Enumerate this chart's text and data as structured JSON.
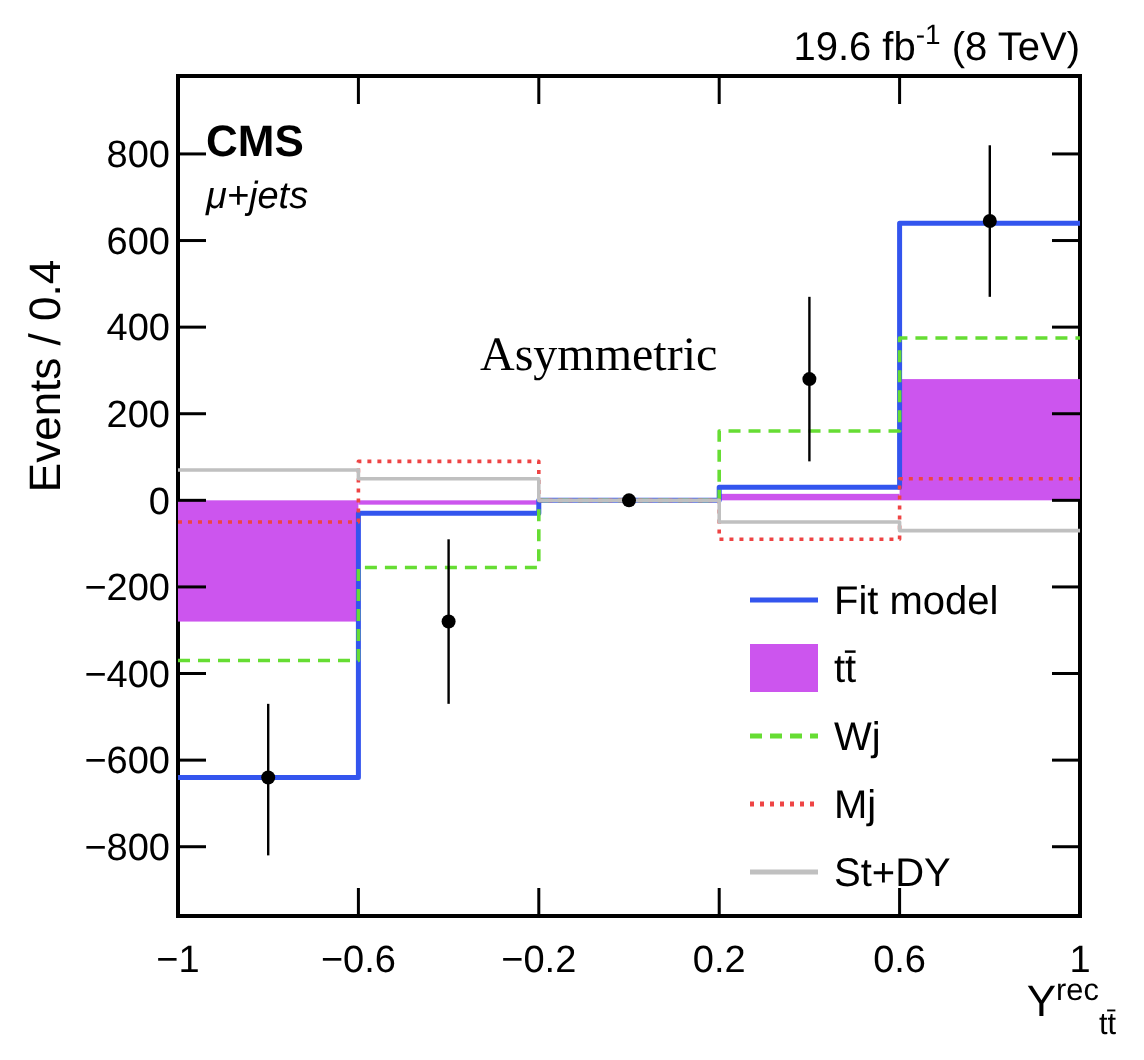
{
  "chart_data": {
    "type": "histogram",
    "ylabel": "Events / 0.4",
    "xlabel": "Υ$^{rec}$$_{tt̄}$",
    "annotations": [
      "19.6 fb$^{-1}$ (8 TeV)",
      "CMS",
      "μ+jets",
      "Asymmetric"
    ],
    "bins": [
      -1,
      -0.6,
      -0.2,
      0.2,
      0.6,
      1
    ],
    "xlim": [
      -1,
      1
    ],
    "xticks": [
      {
        "value": -1,
        "label": "−1"
      },
      {
        "value": -0.6,
        "label": "−0.6"
      },
      {
        "value": -0.2,
        "label": "−0.2"
      },
      0.2,
      0.6,
      1
    ],
    "ylim": [
      -960,
      980
    ],
    "yticks": [
      {
        "value": -800,
        "label": "−800"
      },
      {
        "value": -600,
        "label": "−600"
      },
      {
        "value": -400,
        "label": "−400"
      },
      {
        "value": -200,
        "label": "−200"
      },
      0,
      200,
      400,
      600,
      800
    ],
    "legend": "bottom right",
    "grid": false,
    "series": [
      {
        "type": "scatter",
        "color": "#000000",
        "marker": "circle",
        "x": [
          -0.8,
          -0.4,
          0,
          0.4,
          0.8
        ],
        "values": [
          -640,
          -280,
          0,
          280,
          645
        ],
        "errors": [
          [
            -820,
            -470
          ],
          [
            -470,
            -90
          ],
          null,
          [
            90,
            470
          ],
          [
            470,
            820
          ]
        ]
      },
      {
        "name": "Fit model",
        "type": "step",
        "color": "#3355ee",
        "line_style": "solid",
        "x": [
          -1,
          -0.6,
          -0.2,
          0.2,
          0.6,
          1
        ],
        "values": [
          -640,
          -30,
          0,
          30,
          640,
          640
        ]
      },
      {
        "name": "tt̄",
        "color": "#cc55ee",
        "values": [
          -280,
          -10,
          0,
          15,
          280
        ]
      },
      {
        "name": "Wj",
        "type": "step",
        "color": "#66dd33",
        "line_style": "dashed",
        "x": [
          -1,
          -0.6,
          -0.2,
          0.2,
          0.6,
          1
        ],
        "values": [
          -370,
          -155,
          0,
          160,
          375,
          375
        ]
      },
      {
        "name": "Mj",
        "type": "step",
        "color": "#ee4444",
        "line_style": "dotted",
        "x": [
          -1,
          -0.6,
          -0.2,
          0.2,
          0.6,
          1
        ],
        "values": [
          -50,
          90,
          0,
          -90,
          50,
          50
        ]
      },
      {
        "name": "St+DY",
        "type": "step",
        "color": "#c0c0c0",
        "line_style": "solid",
        "x": [
          -1,
          -0.6,
          -0.2,
          0.2,
          0.6,
          1
        ],
        "values": [
          70,
          50,
          0,
          -50,
          -70,
          -70
        ]
      }
    ]
  }
}
